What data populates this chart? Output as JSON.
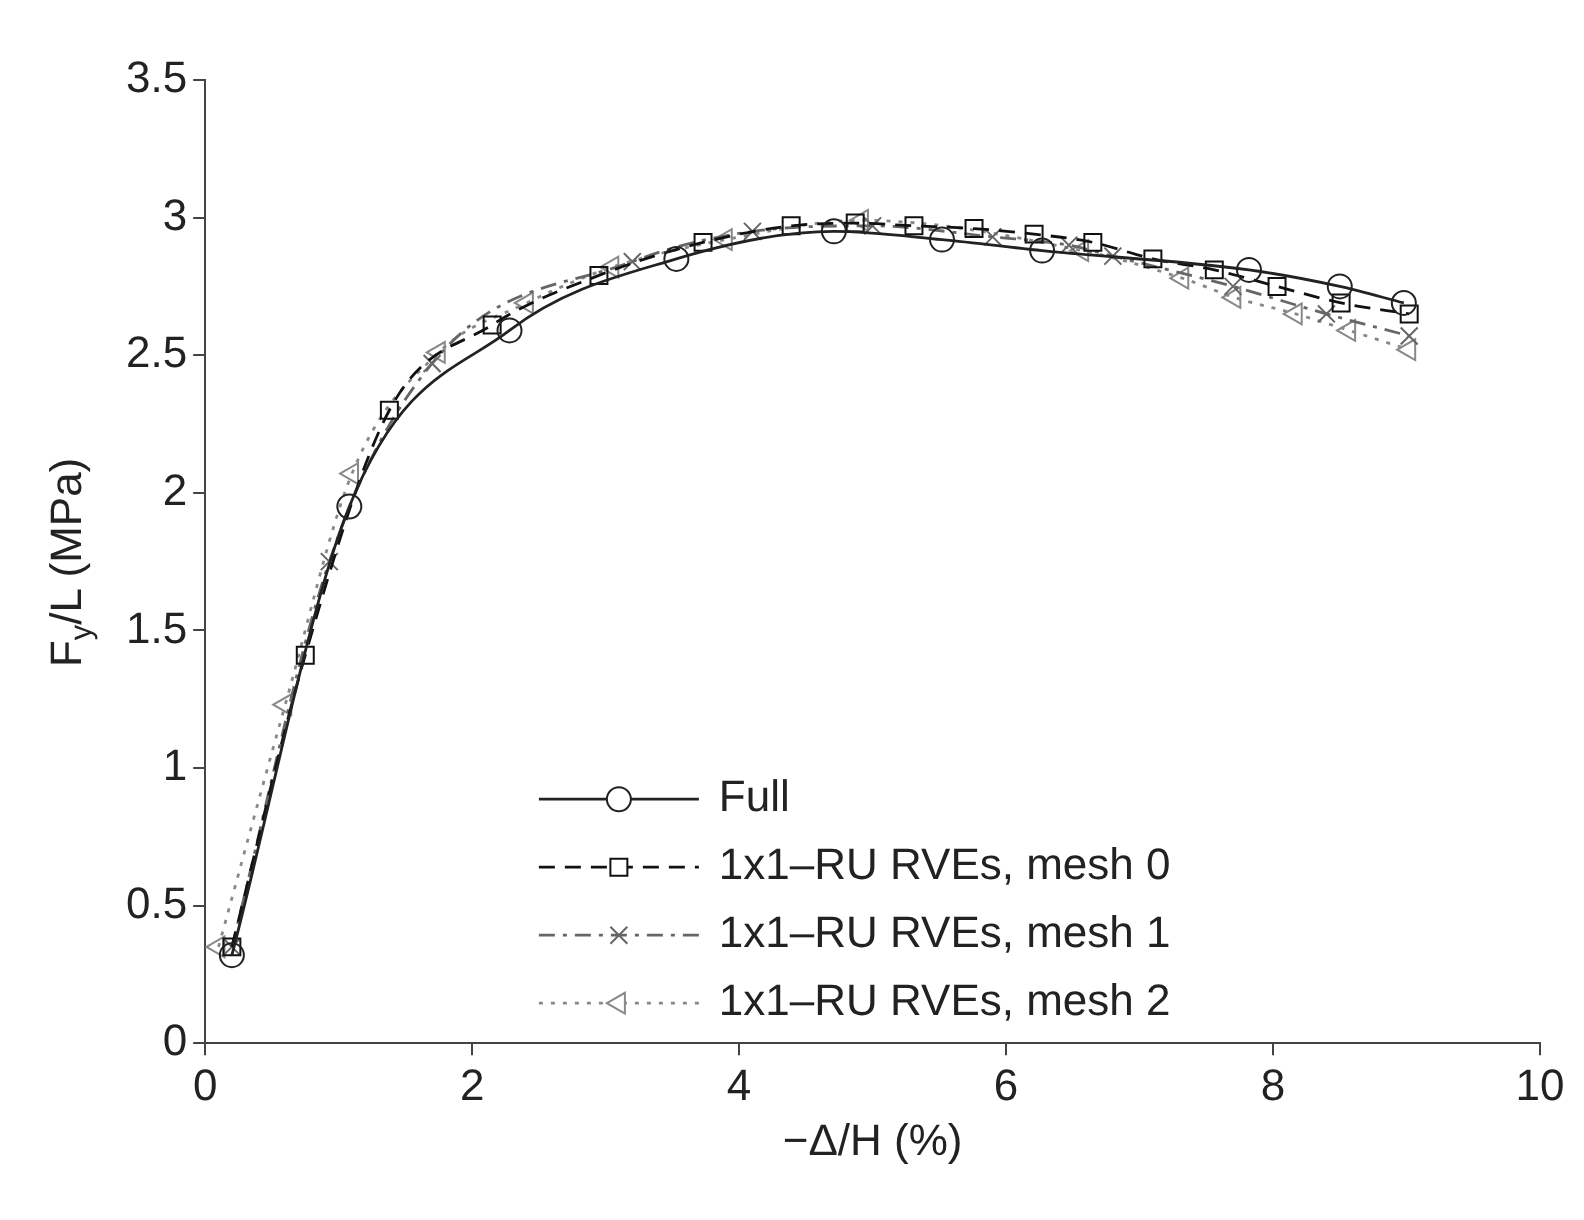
{
  "chart_data": {
    "type": "line",
    "xlabel": "−Δ/H (%)",
    "ylabel": "F$_{y}$/L (MPa)",
    "xlim": [
      0,
      10
    ],
    "xticks": [
      0,
      2,
      4,
      6,
      8,
      10
    ],
    "ylim": [
      0,
      3.5
    ],
    "yticks": [
      0,
      0.5,
      1,
      1.5,
      2,
      2.5,
      3,
      3.5
    ],
    "grid": false,
    "legend": "bottom right",
    "series": [
      {
        "name": "Full",
        "color": "#222222",
        "marker": "circle",
        "line_style": "solid",
        "x": [
          0.2,
          1.08,
          2.28,
          3.53,
          4.71,
          5.52,
          6.27,
          7.82,
          8.5,
          8.98
        ],
        "values": [
          0.32,
          1.95,
          2.59,
          2.85,
          2.95,
          2.92,
          2.88,
          2.81,
          2.75,
          2.69
        ]
      },
      {
        "name": "1x1–RU RVEs, mesh 0",
        "color": "#111111",
        "marker": "square",
        "line_style": "dashed",
        "x": [
          0.2,
          0.75,
          1.38,
          2.15,
          2.95,
          3.73,
          4.39,
          4.87,
          5.31,
          5.76,
          6.21,
          6.65,
          7.1,
          7.56,
          8.03,
          8.51,
          9.02
        ],
        "values": [
          0.35,
          1.41,
          2.3,
          2.61,
          2.79,
          2.91,
          2.97,
          2.98,
          2.97,
          2.96,
          2.94,
          2.91,
          2.85,
          2.81,
          2.75,
          2.69,
          2.65
        ]
      },
      {
        "name": "1x1–RU RVEs, mesh 1",
        "color": "#666666",
        "marker": "cross",
        "line_style": "dashdot",
        "x": [
          0.2,
          0.93,
          1.7,
          3.2,
          4.1,
          5.0,
          5.9,
          6.47,
          6.8,
          7.7,
          8.4,
          9.02
        ],
        "values": [
          0.35,
          1.75,
          2.47,
          2.84,
          2.95,
          2.97,
          2.93,
          2.9,
          2.86,
          2.75,
          2.65,
          2.57
        ]
      },
      {
        "name": "1x1–RU RVEs, mesh 2",
        "color": "#888888",
        "marker": "triangle",
        "line_style": "dotted",
        "x": [
          0.1,
          0.6,
          1.1,
          1.75,
          2.41,
          3.05,
          3.9,
          4.92,
          6.57,
          7.32,
          7.71,
          8.17,
          8.57,
          9.02
        ],
        "values": [
          0.35,
          1.23,
          2.07,
          2.51,
          2.69,
          2.82,
          2.92,
          2.99,
          2.88,
          2.78,
          2.71,
          2.65,
          2.59,
          2.52
        ]
      }
    ]
  }
}
